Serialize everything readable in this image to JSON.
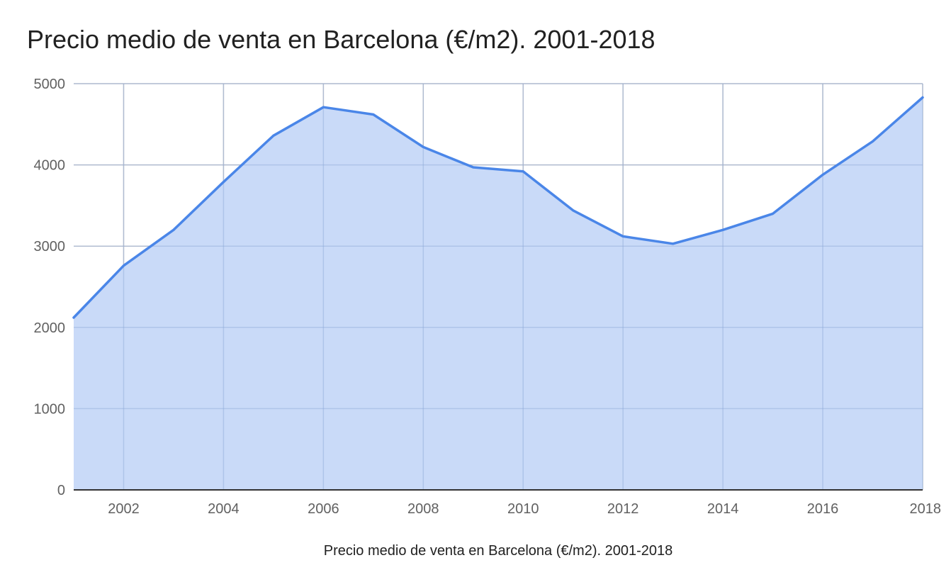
{
  "chart_data": {
    "type": "area",
    "title": "Precio medio de venta en Barcelona (€/m2). 2001-2018",
    "xlabel": "Precio medio de venta en Barcelona (€/m2). 2001-2018",
    "ylabel": "",
    "x": [
      2001,
      2002,
      2003,
      2004,
      2005,
      2006,
      2007,
      2008,
      2009,
      2010,
      2011,
      2012,
      2013,
      2014,
      2015,
      2016,
      2017,
      2018
    ],
    "series": [
      {
        "values": [
          2120,
          2760,
          3200,
          3790,
          4360,
          4710,
          4620,
          4220,
          3970,
          3920,
          3440,
          3120,
          3030,
          3200,
          3400,
          3880,
          4290,
          4830
        ]
      }
    ],
    "xlim": [
      2001,
      2018
    ],
    "ylim": [
      0,
      5000
    ],
    "xticks": [
      2002,
      2004,
      2006,
      2008,
      2010,
      2012,
      2014,
      2016,
      2018
    ],
    "yticks": [
      0,
      1000,
      2000,
      3000,
      4000,
      5000
    ],
    "grid": true,
    "legend": "none",
    "colors": {
      "line": "#4a86e8",
      "fill": "#c9daf8",
      "grid": "#cccccc",
      "axis": "#333333"
    }
  }
}
